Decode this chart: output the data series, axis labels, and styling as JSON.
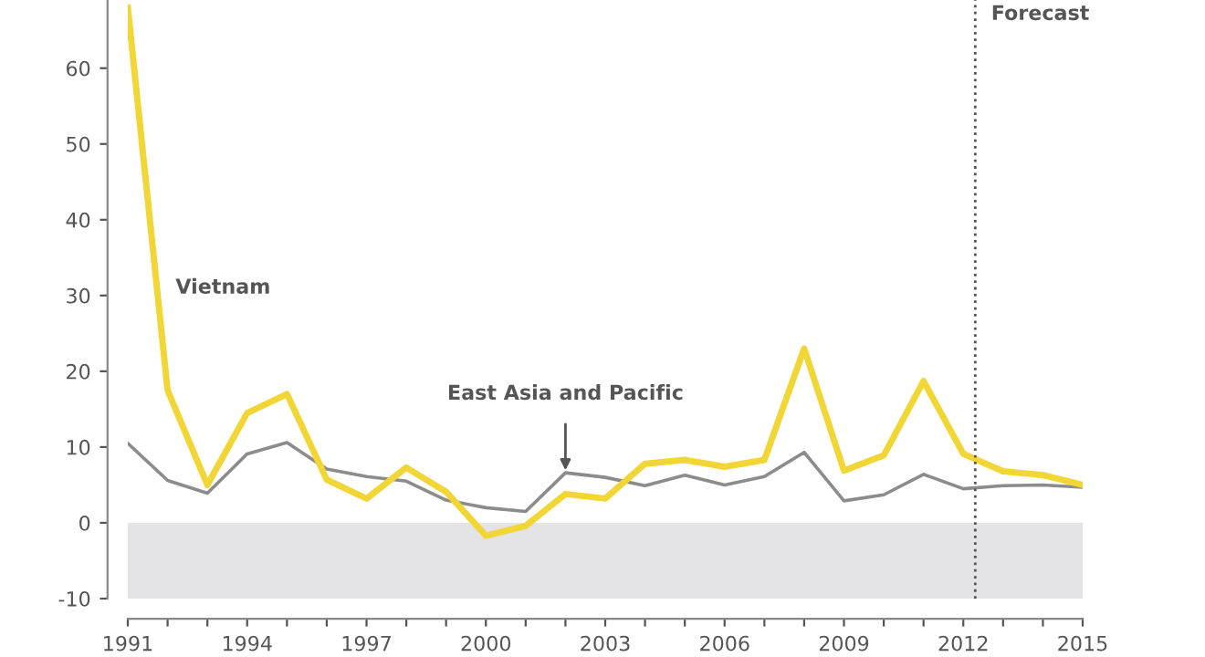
{
  "chart_data": {
    "type": "line",
    "x": [
      1991,
      1992,
      1993,
      1994,
      1995,
      1996,
      1997,
      1998,
      1999,
      2000,
      2001,
      2002,
      2003,
      2004,
      2005,
      2006,
      2007,
      2008,
      2009,
      2010,
      2011,
      2012,
      2013,
      2014,
      2015
    ],
    "series": [
      {
        "name": "Vietnam",
        "color": "#f2d635",
        "values": [
          68,
          17.5,
          5,
          14.5,
          17,
          5.7,
          3.2,
          7.3,
          4.1,
          -1.7,
          -0.4,
          3.8,
          3.2,
          7.8,
          8.3,
          7.4,
          8.3,
          23,
          6.9,
          8.9,
          18.7,
          9.1,
          6.8,
          6.3,
          5.0
        ]
      },
      {
        "name": "East Asia and Pacific",
        "color": "#8c8c8c",
        "values": [
          10.5,
          5.6,
          3.9,
          9.1,
          10.6,
          7.1,
          6.1,
          5.5,
          3.0,
          2.0,
          1.5,
          6.6,
          6.0,
          4.9,
          6.3,
          5.0,
          6.1,
          9.3,
          2.9,
          3.7,
          6.4,
          4.5,
          4.9,
          5.0,
          4.7
        ]
      }
    ],
    "xlim": [
      1991,
      2015
    ],
    "xticks": [
      1991,
      {
        "value": 1992,
        "label": null
      },
      {
        "value": 1993,
        "label": null
      },
      1994,
      {
        "value": 1995,
        "label": null
      },
      {
        "value": 1996,
        "label": null
      },
      1997,
      {
        "value": 1998,
        "label": null
      },
      {
        "value": 1999,
        "label": null
      },
      2000,
      {
        "value": 2001,
        "label": null
      },
      {
        "value": 2002,
        "label": null
      },
      2003,
      {
        "value": 2004,
        "label": null
      },
      {
        "value": 2005,
        "label": null
      },
      2006,
      {
        "value": 2007,
        "label": null
      },
      {
        "value": 2008,
        "label": null
      },
      2009,
      {
        "value": 2010,
        "label": null
      },
      {
        "value": 2011,
        "label": null
      },
      2012,
      {
        "value": 2013,
        "label": null
      },
      {
        "value": 2014,
        "label": null
      },
      2015
    ],
    "ylim": [
      -10,
      69
    ],
    "yticks": [
      -10,
      0,
      10,
      20,
      30,
      40,
      50,
      60
    ],
    "ref_lines": [
      {
        "axis": "x",
        "value": 2012.3,
        "label": "Forecast",
        "color": "#555555",
        "line_style": "dotted"
      }
    ],
    "bands": [
      {
        "axis": "y",
        "from": -10,
        "to": 0,
        "color": "#e4e4e6"
      }
    ],
    "grid": false,
    "legend": false,
    "marker": "none",
    "line_style": "solid"
  }
}
